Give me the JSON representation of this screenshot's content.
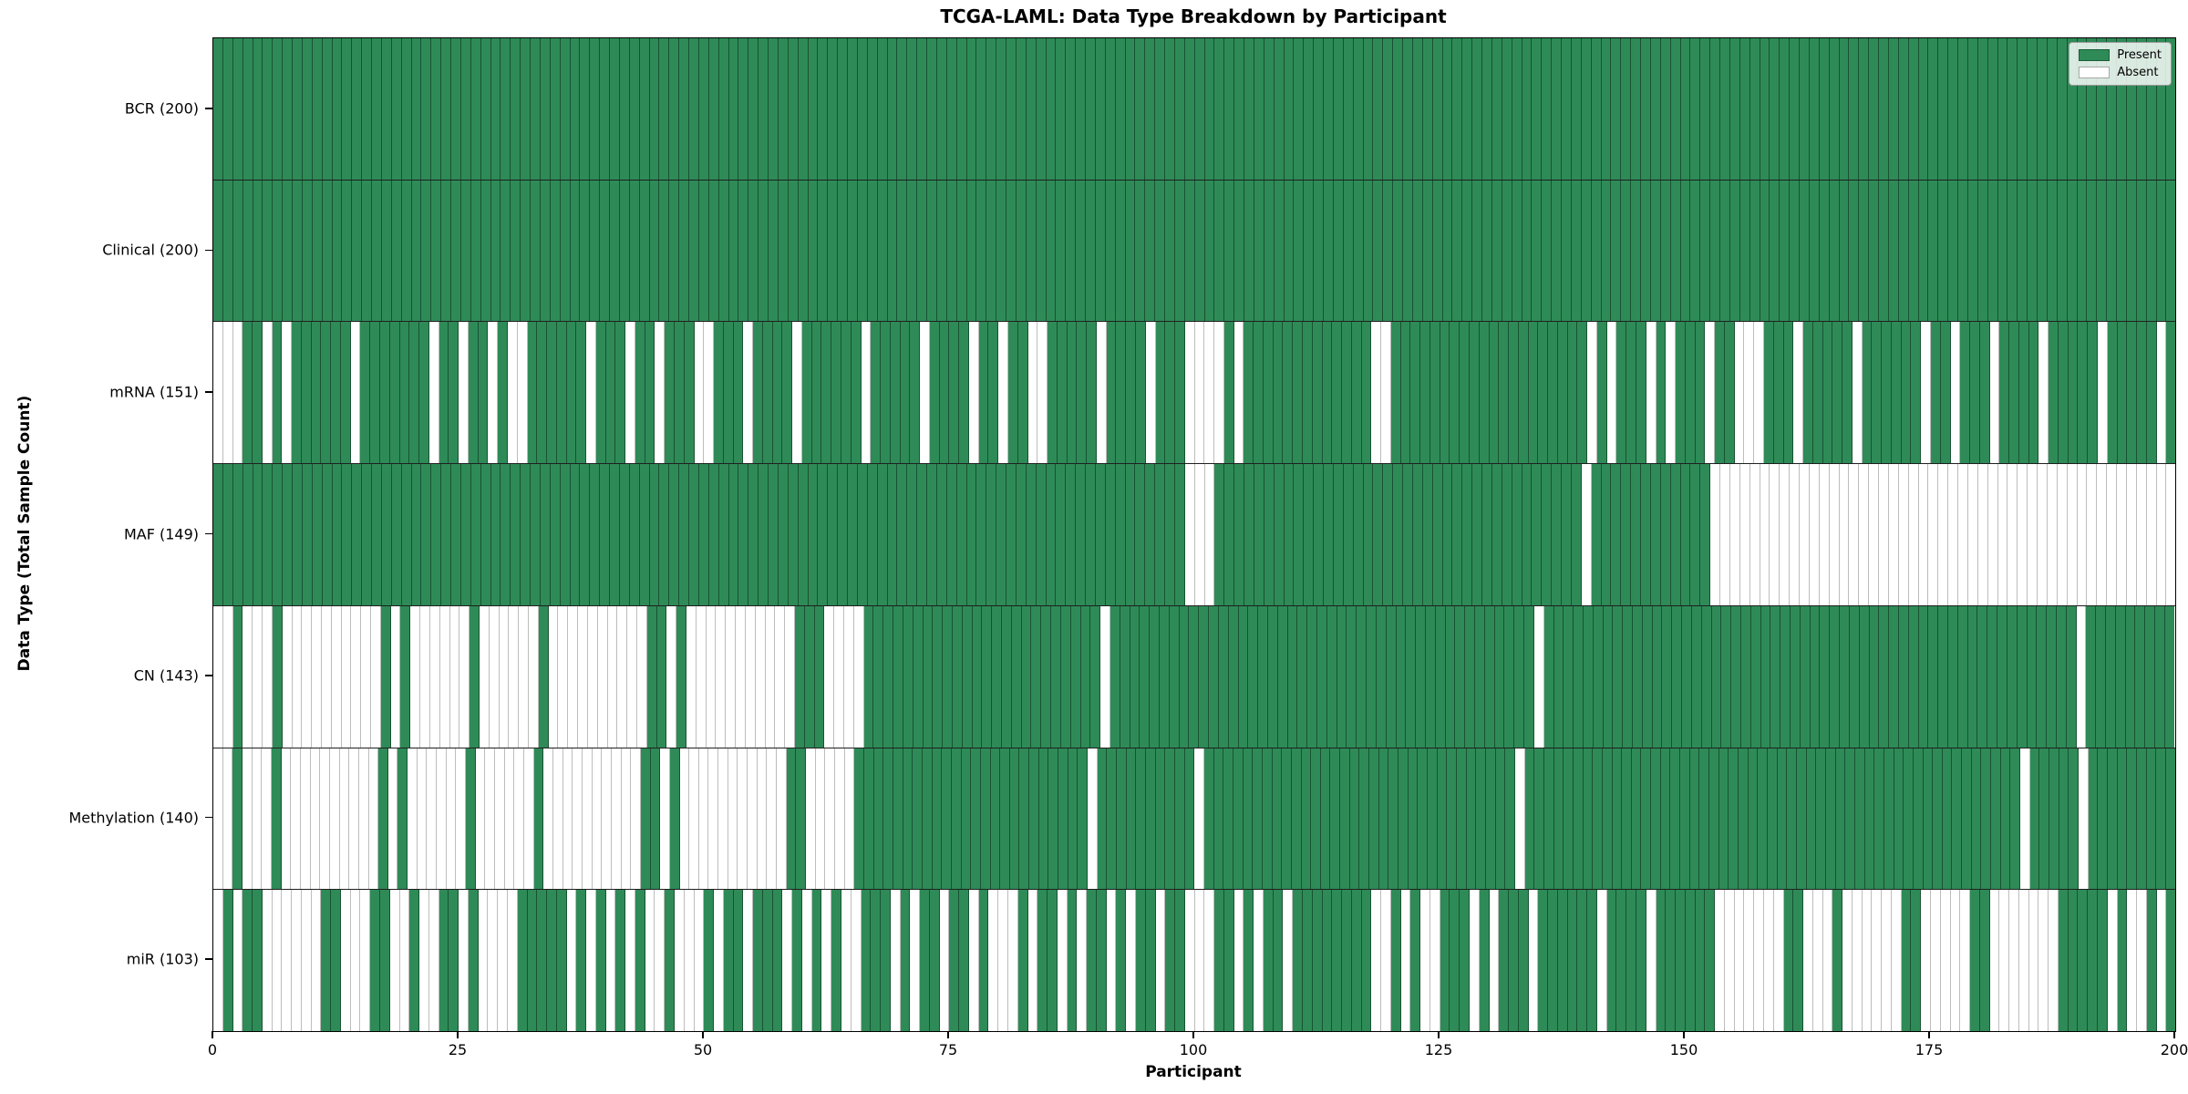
{
  "title": "TCGA-LAML: Data Type Breakdown by Participant",
  "x_axis": {
    "label": "Participant",
    "min": 0,
    "max": 200,
    "ticks": [
      0,
      25,
      50,
      75,
      100,
      125,
      150,
      175,
      200
    ]
  },
  "y_axis": {
    "label": "Data Type (Total Sample Count)"
  },
  "legend": {
    "present_label": "Present",
    "absent_label": "Absent",
    "position": "upper right"
  },
  "colors": {
    "present": "#2e8b57",
    "absent": "#ffffff",
    "row_divider": "#1f1f1f",
    "spine": "#000000"
  },
  "chart_data": {
    "type": "heatmap",
    "title": "TCGA-LAML: Data Type Breakdown by Participant",
    "xlabel": "Participant",
    "ylabel": "Data Type (Total Sample Count)",
    "x_range": [
      0,
      200
    ],
    "x_ticks": [
      0,
      25,
      50,
      75,
      100,
      125,
      150,
      175,
      200
    ],
    "n_participants": 200,
    "grid": false,
    "legend_entries": [
      "Present",
      "Absent"
    ],
    "legend_position": "upper right",
    "cell_encoding": "P=present(green), A=absent(white); 200 chars per row = participants 0-199",
    "rows": [
      {
        "data_type": "BCR",
        "label": "BCR (200)",
        "present_count": 200,
        "absent_count": 0,
        "pattern": "PPPPPPPPPPPPPPPPPPPPPPPPPPPPPPPPPPPPPPPPPPPPPPPPPPPPPPPPPPPPPPPPPPPPPPPPPPPPPPPPPPPPPPPPPPPPPPPPPPPPPPPPPPPPPPPPPPPPPPPPPPPPPPPPPPPPPPPPPPPPPPPPPPPPPPPPPPPPPPPPPPPPPPPPPPPPPPPPPPPPPPPPPPPPPPPPPPPPPP"
      },
      {
        "data_type": "Clinical",
        "label": "Clinical (200)",
        "present_count": 200,
        "absent_count": 0,
        "pattern": "PPPPPPPPPPPPPPPPPPPPPPPPPPPPPPPPPPPPPPPPPPPPPPPPPPPPPPPPPPPPPPPPPPPPPPPPPPPPPPPPPPPPPPPPPPPPPPPPPPPPPPPPPPPPPPPPPPPPPPPPPPPPPPPPPPPPPPPPPPPPPPPPPPPPPPPPPPPPPPPPPPPPPPPPPPPPPPPPPPPPPPPPPPPPPPPPPPPPPP"
      },
      {
        "data_type": "mRNA",
        "label": "mRNA (151)",
        "present_count": 151,
        "absent_count": 49,
        "pattern": "AAAPPAPAPPPPPPAPPPPPPPAPPAPPAPAAPPPPPPAPPPAPPAPPPAAPPPAPPPPAPPPPPPAPPPPPAPPPPAPPAPPAAPPPPPAPPPPAPPPAAAAPAPPPPPPPPPPPPPAAPPPPPPPPPPPPPPPPPPPPAPAPPPAPAPPPAPPAAAPPPAPPPPPAPPPPPPAPPAPPPAPPPPAPPPPPAPPPPPAP"
      },
      {
        "data_type": "MAF",
        "label": "MAF (149)",
        "present_count": 149,
        "absent_count": 51,
        "pattern": "PPPPPPPPPPPPPPPPPPPPPPPPPPPPPPPPPPPPPPPPPPPPPPPPPPPPPPPPPPPPPPPPPPPPPPPPPPPPPPPPPPPPPPPPPPPPPPPPPPAAAPPPPPPPPPPPPPPPPPPPPPPPPPPPPPPPPPPPPPAPPPPPPPPPPPPAAAAAAAAAAAAAAAAAAAAAAAAAAAAAAAAAAAAAAAAAAAAAAA"
      },
      {
        "data_type": "CN",
        "label": "CN (143)",
        "present_count": 143,
        "absent_count": 57,
        "pattern": "AAPAAAPAAAAAAAAAAPAPAAAAAAPAAAAAAPAAAAAAAAAAPPAPAAAAAAAAAAAPPPAAAAPPPPPPPPPPPPPPPPPPPPPPPPAPPPPPPPPPPPPPPPPPPPPPPPPPPPPPPPPPPPPPPPPPPPAPPPPPPPPPPPPPPPPPPPPPPPPPPPPPPPPPPPPPPPPPPPPPPPPPPPPPPAPPPPPPPPP"
      },
      {
        "data_type": "Methylation",
        "label": "Methylation (140)",
        "present_count": 140,
        "absent_count": 60,
        "pattern": "AAPAAAPAAAAAAAAAAPAPAAAAAAPAAAAAAPAAAAAAAAAAPPAPAAAAAAAAAAAPPAAAAAPPPPPPPPPPPPPPPPPPPPPPPPAPPPPPPPPPPAPPPPPPPPPPPPPPPPPPPPPPPPPPPPPPPPAPPPPPPPPPPPPPPPPPPPPPPPPPPPPPPPPPPPPPPPPPPPPPPPPPPPAPPPPPAPPPPPPPPP"
      },
      {
        "data_type": "miR",
        "label": "miR (103)",
        "present_count": 103,
        "absent_count": 97,
        "pattern": "APAPPAAAAAAPPAAAPPAAPAAPPAPAAAAPPPPPAPAPAPAPAAPAAAPAPPAPPPAPAPAPAAPPPAPAPPAPPAPAAAPAPPAPAPPAPAPPAPPAAAPPAPAPPAPPPPPPPPAAPAPAAPPPAPAPPPAPPPPPPAPPPPAPPPPPPAAAAAAAPPAAAPAAAAAAPPAAAAAPPAAAAAAAPPPPPAPAAPAP"
      }
    ]
  }
}
